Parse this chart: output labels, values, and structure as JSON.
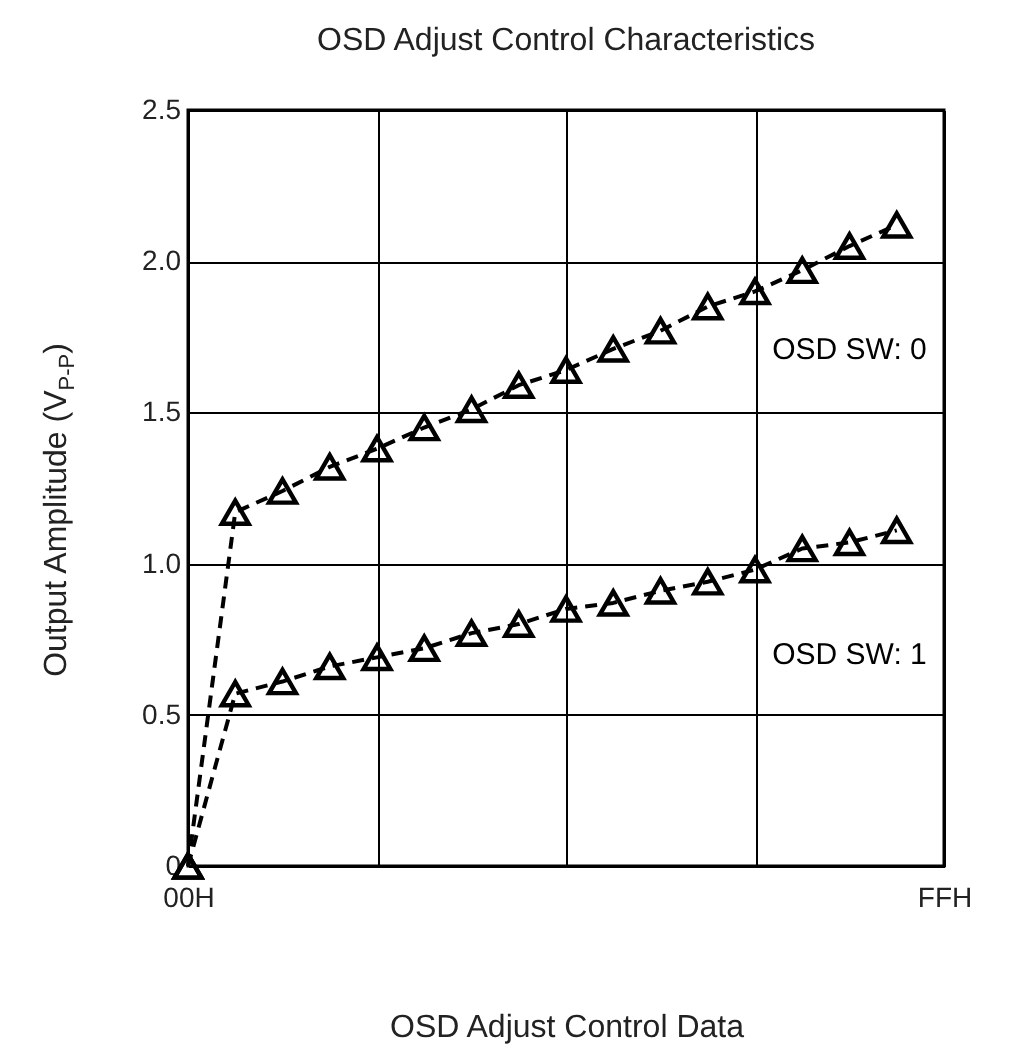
{
  "chart_data": {
    "type": "line",
    "title": "OSD Adjust Control Characteristics",
    "xlabel": "OSD Adjust Control Data",
    "ylabel": "Output Amplitude (V$_{P-P}$)",
    "categories": [
      "00H",
      null,
      null,
      null,
      null,
      null,
      null,
      null,
      null,
      null,
      null,
      null,
      null,
      null,
      null,
      null,
      "FFH"
    ],
    "series": [
      {
        "name": "OSD SW: 0",
        "color": "#000000",
        "values": [
          0,
          1.17,
          1.24,
          1.32,
          1.38,
          1.45,
          1.51,
          1.59,
          1.64,
          1.71,
          1.77,
          1.85,
          1.9,
          1.97,
          2.05,
          2.12,
          null
        ]
      },
      {
        "name": "OSD SW: 1",
        "color": "#000000",
        "values": [
          0,
          0.57,
          0.61,
          0.66,
          0.69,
          0.72,
          0.77,
          0.8,
          0.85,
          0.87,
          0.91,
          0.94,
          0.98,
          1.05,
          1.07,
          1.11,
          null
        ]
      }
    ],
    "ylim": [
      0,
      2.5
    ],
    "yticks": [
      0,
      {
        "value": 0.5,
        "label": "0.5"
      },
      {
        "value": 1,
        "label": "1.0"
      },
      {
        "value": 1.5,
        "label": "1.5"
      },
      {
        "value": 2,
        "label": "2.0"
      },
      {
        "value": 2.5,
        "label": "2.5"
      }
    ],
    "grid": true,
    "marker": "triangle",
    "line_style": "dashed",
    "legend": false
  }
}
